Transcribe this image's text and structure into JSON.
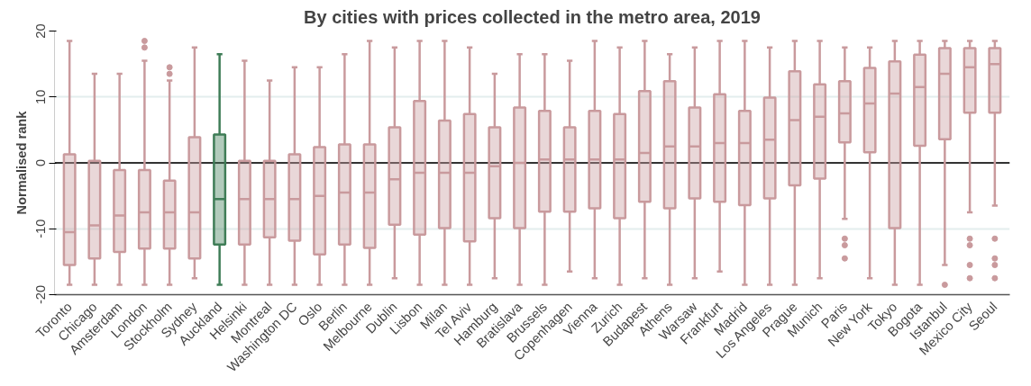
{
  "chart_data": {
    "type": "box",
    "title": "By cities with prices collected in the metro area, 2019",
    "ylabel": "Normalised rank",
    "categories": [
      "Toronto",
      "Chicago",
      "Amsterdam",
      "London",
      "Stockholm",
      "Sydney",
      "Auckland",
      "Helsinki",
      "Montreal",
      "Washington DC",
      "Oslo",
      "Berlin",
      "Melbourne",
      "Dublin",
      "Lisbon",
      "Milan",
      "Tel Aviv",
      "Hamburg",
      "Bratislava",
      "Brussels",
      "Copenhagen",
      "Vienna",
      "Zurich",
      "Budapest",
      "Athens",
      "Warsaw",
      "Frankfurt",
      "Madrid",
      "Los Angeles",
      "Prague",
      "Munich",
      "Paris",
      "New York",
      "Tokyo",
      "Bogota",
      "Istanbul",
      "Mexico City",
      "Seoul"
    ],
    "colors": [
      "#c99a9d",
      "#c99a9d",
      "#c99a9d",
      "#c99a9d",
      "#c99a9d",
      "#c99a9d",
      "#3f7d57",
      "#c99a9d",
      "#c99a9d",
      "#c99a9d",
      "#c99a9d",
      "#c99a9d",
      "#c99a9d",
      "#c99a9d",
      "#c99a9d",
      "#c99a9d",
      "#c99a9d",
      "#c99a9d",
      "#c99a9d",
      "#c99a9d",
      "#c99a9d",
      "#c99a9d",
      "#c99a9d",
      "#c99a9d",
      "#c99a9d",
      "#c99a9d",
      "#c99a9d",
      "#c99a9d",
      "#c99a9d",
      "#c99a9d",
      "#c99a9d",
      "#c99a9d",
      "#c99a9d",
      "#c99a9d",
      "#c99a9d",
      "#c99a9d",
      "#c99a9d",
      "#c99a9d"
    ],
    "boxes": [
      {
        "low": -18.5,
        "q1": -15.5,
        "median": -10.5,
        "q3": 1.3,
        "high": 18.5
      },
      {
        "low": -18.5,
        "q1": -14.5,
        "median": -9.5,
        "q3": 0.3,
        "high": 13.5
      },
      {
        "low": -18.5,
        "q1": -13.5,
        "median": -8,
        "q3": -1.1,
        "high": 13.5
      },
      {
        "low": -18.5,
        "q1": -13,
        "median": -7.5,
        "q3": -1.1,
        "high": 15.5,
        "outliers": [
          17.5,
          18.5
        ]
      },
      {
        "low": -18.5,
        "q1": -13,
        "median": -7.5,
        "q3": -2.7,
        "high": 12.5,
        "outliers": [
          13.5,
          14.5
        ]
      },
      {
        "low": -17.5,
        "q1": -14.5,
        "median": -7.5,
        "q3": 3.9,
        "high": 17.5
      },
      {
        "low": -18.5,
        "q1": -12.4,
        "median": -5.5,
        "q3": 4.3,
        "high": 16.5
      },
      {
        "low": -18.5,
        "q1": -12.4,
        "median": -5.5,
        "q3": 0.3,
        "high": 15.5
      },
      {
        "low": -18.5,
        "q1": -11.3,
        "median": -5.5,
        "q3": 0.3,
        "high": 12.5
      },
      {
        "low": -18.5,
        "q1": -11.8,
        "median": -5.5,
        "q3": 1.3,
        "high": 14.5
      },
      {
        "low": -18.5,
        "q1": -13.9,
        "median": -5,
        "q3": 2.4,
        "high": 14.5
      },
      {
        "low": -18.5,
        "q1": -12.4,
        "median": -4.5,
        "q3": 2.8,
        "high": 16.5
      },
      {
        "low": -18.5,
        "q1": -12.9,
        "median": -4.5,
        "q3": 2.8,
        "high": 18.5
      },
      {
        "low": -17.5,
        "q1": -9.4,
        "median": -2.5,
        "q3": 5.4,
        "high": 17.5
      },
      {
        "low": -18.5,
        "q1": -10.9,
        "median": -1.5,
        "q3": 9.4,
        "high": 18.5
      },
      {
        "low": -18.5,
        "q1": -9.9,
        "median": -1.5,
        "q3": 6.4,
        "high": 18.5
      },
      {
        "low": -18.5,
        "q1": -11.9,
        "median": -1.5,
        "q3": 7.4,
        "high": 17.5
      },
      {
        "low": -17.5,
        "q1": -8.4,
        "median": -0.5,
        "q3": 5.4,
        "high": 13.5
      },
      {
        "low": -18.5,
        "q1": -9.9,
        "median": 0,
        "q3": 8.4,
        "high": 16.5
      },
      {
        "low": -18.5,
        "q1": -7.4,
        "median": 0.5,
        "q3": 7.9,
        "high": 16.5
      },
      {
        "low": -16.5,
        "q1": -7.4,
        "median": 0.5,
        "q3": 5.4,
        "high": 15.5
      },
      {
        "low": -17.5,
        "q1": -6.9,
        "median": 0.5,
        "q3": 7.9,
        "high": 18.5
      },
      {
        "low": -18.5,
        "q1": -8.4,
        "median": 0.5,
        "q3": 7.4,
        "high": 17.5
      },
      {
        "low": -17.5,
        "q1": -5.9,
        "median": 1.5,
        "q3": 10.9,
        "high": 18.5
      },
      {
        "low": -18.5,
        "q1": -6.9,
        "median": 2.5,
        "q3": 12.4,
        "high": 16.5
      },
      {
        "low": -17.5,
        "q1": -5.4,
        "median": 2.5,
        "q3": 8.4,
        "high": 17.5
      },
      {
        "low": -16.5,
        "q1": -5.9,
        "median": 3,
        "q3": 10.4,
        "high": 18.5
      },
      {
        "low": -18.5,
        "q1": -6.4,
        "median": 3,
        "q3": 7.9,
        "high": 18.5
      },
      {
        "low": -18.5,
        "q1": -5.4,
        "median": 3.5,
        "q3": 9.9,
        "high": 17.5
      },
      {
        "low": -18.5,
        "q1": -3.4,
        "median": 6.5,
        "q3": 13.9,
        "high": 18.5
      },
      {
        "low": -17.5,
        "q1": -2.4,
        "median": 7,
        "q3": 11.9,
        "high": 18.5
      },
      {
        "low": -8.5,
        "q1": 3.1,
        "median": 7.5,
        "q3": 12.4,
        "high": 17.5,
        "outliers": [
          -11.5,
          -12.5,
          -14.5
        ]
      },
      {
        "low": -17.5,
        "q1": 1.6,
        "median": 9,
        "q3": 14.4,
        "high": 17.5
      },
      {
        "low": -18.5,
        "q1": -9.9,
        "median": 10.5,
        "q3": 15.4,
        "high": 18.5
      },
      {
        "low": -18.5,
        "q1": 2.6,
        "median": 11.5,
        "q3": 16.4,
        "high": 18.5
      },
      {
        "low": -15.5,
        "q1": 3.6,
        "median": 13.5,
        "q3": 17.4,
        "high": 18.5,
        "outliers": [
          -18.5
        ]
      },
      {
        "low": -7.5,
        "q1": 7.6,
        "median": 14.5,
        "q3": 17.4,
        "high": 18.5,
        "outliers": [
          -11.5,
          -12.5,
          -15.5,
          -17.5
        ]
      },
      {
        "low": -6.5,
        "q1": 7.6,
        "median": 15,
        "q3": 17.4,
        "high": 18.5,
        "outliers": [
          -11.5,
          -14.5,
          -15.5,
          -17.5
        ]
      }
    ],
    "ylim": [
      -20,
      20
    ],
    "yticks": [
      -20,
      -10,
      0,
      10,
      20
    ],
    "grid": "y",
    "ref_lines": [
      {
        "axis": "y",
        "value": 0,
        "color": "#333333"
      }
    ]
  }
}
